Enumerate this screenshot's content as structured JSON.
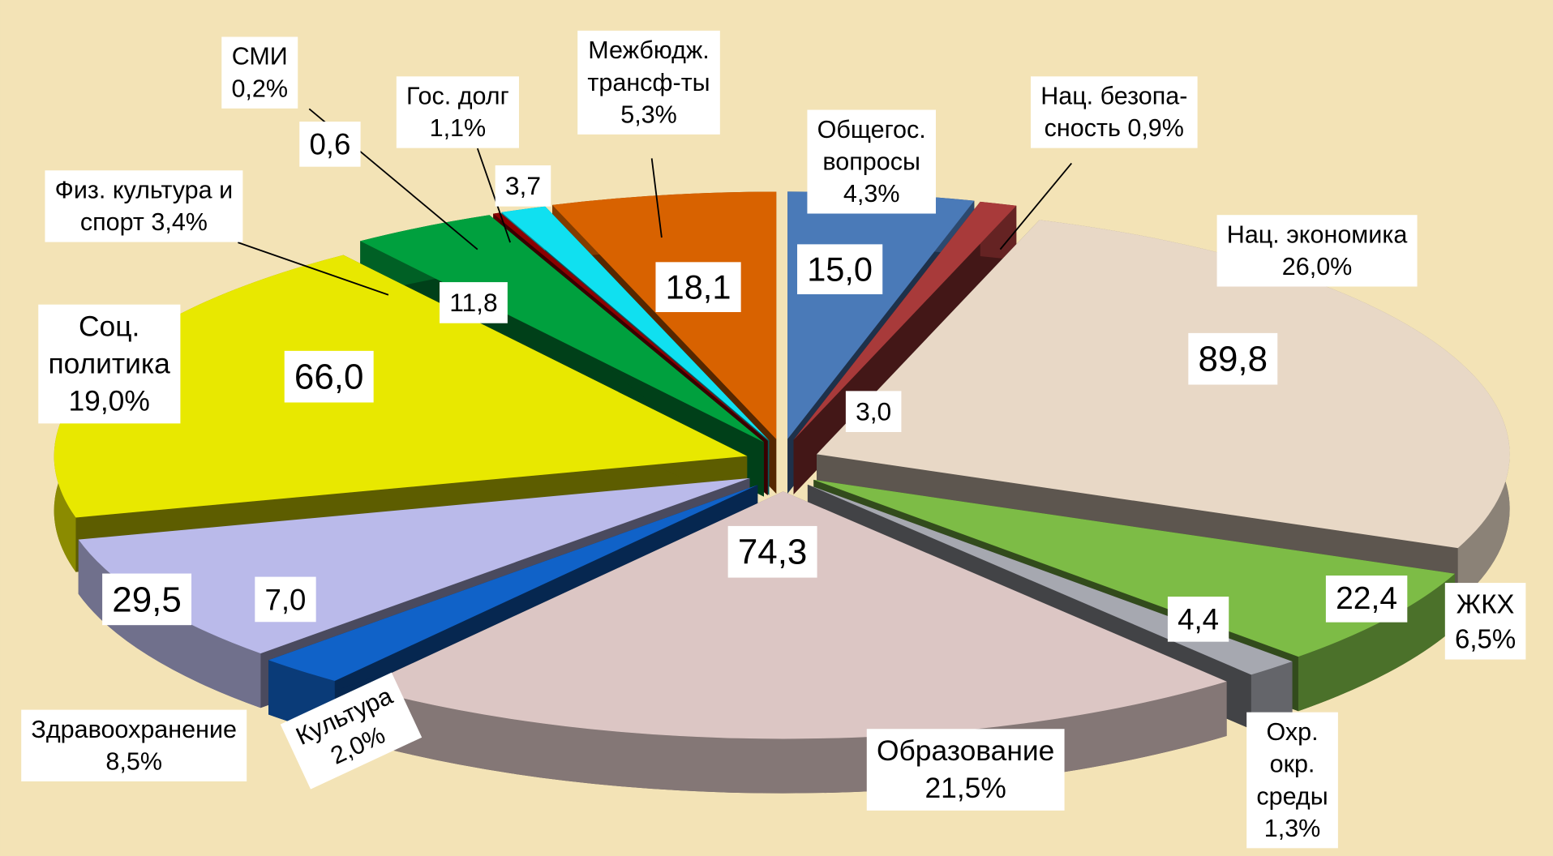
{
  "chart_data": {
    "type": "pie",
    "categories": [
      "Общегос.\nвопросы\n4,3%",
      "Нац. безопа-\nсность 0,9%",
      "Нац. экономика\n26,0%",
      "ЖКХ\n6,5%",
      "Охр.\nокр.\nсреды\n1,3%",
      "Образование\n21,5%",
      "Культура\n2,0%",
      "Здравоохранение\n8,5%",
      "Соц.\nполитика\n19,0%",
      "Физ. культура и\nспорт 3,4%",
      "СМИ\n0,2%",
      "Гос. долг\n1,1%",
      "Межбюдж.\nтрансф-ты\n5,3%"
    ],
    "values": [
      15.0,
      3.0,
      89.8,
      22.4,
      4.4,
      74.3,
      7.0,
      29.5,
      66.0,
      11.8,
      0.6,
      3.7,
      18.1
    ],
    "value_labels": [
      "15,0",
      "3,0",
      "89,8",
      "22,4",
      "4,4",
      "74,3",
      "7,0",
      "29,5",
      "66,0",
      "11,8",
      "0,6",
      "3,7",
      "18,1"
    ],
    "colors": [
      "#4a7ab8",
      "#a83a3a",
      "#e8d8c6",
      "#7dbc46",
      "#a6a8b0",
      "#dcc6c4",
      "#1062c8",
      "#babaea",
      "#e8e800",
      "#00a03e",
      "#8c0000",
      "#10e0f0",
      "#d86200"
    ]
  }
}
